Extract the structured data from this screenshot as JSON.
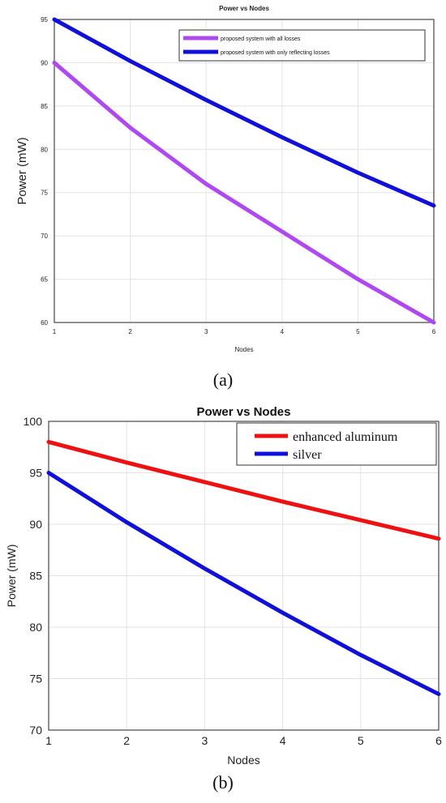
{
  "chart_data": [
    {
      "type": "line",
      "panel_label": "(a)",
      "title": "Power vs Nodes",
      "xlabel": "Nodes",
      "ylabel": "Power (mW)",
      "x": [
        1,
        2,
        3,
        4,
        5,
        6
      ],
      "xlim": [
        1,
        6
      ],
      "ylim": [
        60,
        95
      ],
      "xticks": [
        "1",
        "2",
        "3",
        "4",
        "5",
        "6"
      ],
      "yticks": [
        "60",
        "65",
        "70",
        "75",
        "80",
        "85",
        "90",
        "95"
      ],
      "grid": true,
      "legend_position": "top-right",
      "series": [
        {
          "name": "proposed system with all losses",
          "color": "#b048f0",
          "values": [
            90,
            82.5,
            76,
            70.5,
            65,
            60
          ]
        },
        {
          "name": "proposed system with only reflecting losses",
          "color": "#1010d8",
          "values": [
            95,
            90.2,
            85.7,
            81.4,
            77.3,
            73.5
          ]
        }
      ]
    },
    {
      "type": "line",
      "panel_label": "(b)",
      "title": "Power vs Nodes",
      "xlabel": "Nodes",
      "ylabel": "Power (mW)",
      "x": [
        1,
        2,
        3,
        4,
        5,
        6
      ],
      "xlim": [
        1,
        6
      ],
      "ylim": [
        70,
        100
      ],
      "xticks": [
        "1",
        "2",
        "3",
        "4",
        "5",
        "6"
      ],
      "yticks": [
        "70",
        "75",
        "80",
        "85",
        "90",
        "95",
        "100"
      ],
      "grid": true,
      "legend_position": "top-right",
      "series": [
        {
          "name": "enhanced aluminum",
          "color": "#ee1111",
          "values": [
            98,
            96,
            94.1,
            92.2,
            90.4,
            88.6
          ]
        },
        {
          "name": "silver",
          "color": "#1010d8",
          "values": [
            95,
            90.2,
            85.7,
            81.4,
            77.3,
            73.5
          ]
        }
      ]
    }
  ]
}
